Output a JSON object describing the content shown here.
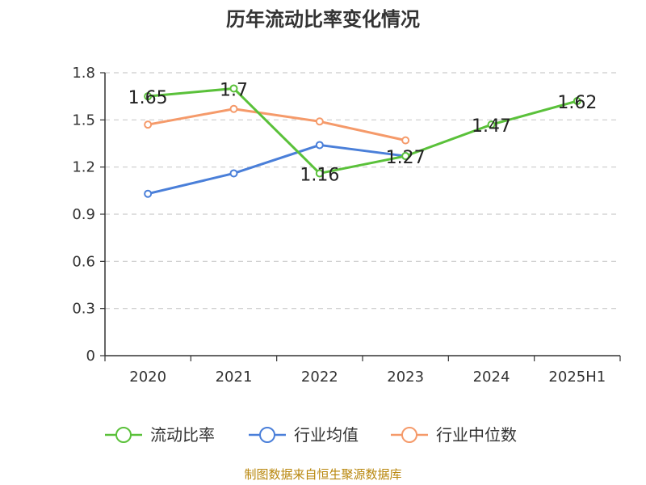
{
  "chart_data": {
    "type": "line",
    "title": "历年流动比率变化情况",
    "categories": [
      "2020",
      "2021",
      "2022",
      "2023",
      "2024",
      "2025H1"
    ],
    "ylim": [
      0,
      1.8
    ],
    "yticks": [
      "0",
      "0.3",
      "0.6",
      "0.9",
      "1.2",
      "1.5",
      "1.8"
    ],
    "grid": true,
    "legend_position": "bottom",
    "series": [
      {
        "name": "流动比率",
        "color": "#5ac13a",
        "values": [
          1.65,
          1.7,
          1.16,
          1.27,
          1.47,
          1.62
        ],
        "data_labels": [
          "1.65",
          "1.7",
          "1.16",
          "1.27",
          "1.47",
          "1.62"
        ]
      },
      {
        "name": "行业均值",
        "color": "#4a7fd9",
        "values": [
          1.03,
          1.16,
          1.34,
          1.27,
          null,
          null
        ]
      },
      {
        "name": "行业中位数",
        "color": "#f59a6a",
        "values": [
          1.47,
          1.57,
          1.49,
          1.37,
          null,
          null
        ]
      }
    ],
    "source": "制图数据来自恒生聚源数据库"
  }
}
